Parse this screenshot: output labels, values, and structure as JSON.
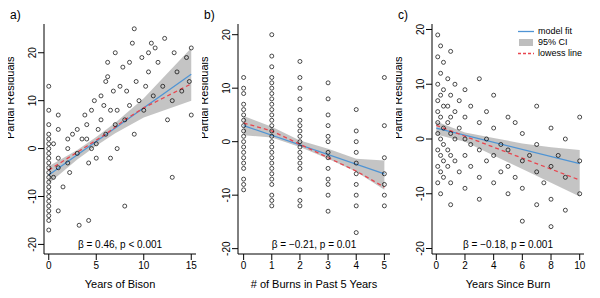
{
  "chart_data": [
    {
      "type": "scatter",
      "title": "a)",
      "xlabel": "Years of Bison",
      "ylabel": "Partial Residuals",
      "annotation": "β = 0.46, p < 0.001",
      "color": "#000000",
      "marker": "circle",
      "xlim": [
        -0.5,
        15.5
      ],
      "xticks": [
        0,
        5,
        10,
        15
      ],
      "ylim": [
        -22,
        26
      ],
      "yticks": [
        -20,
        -10,
        0,
        10,
        20
      ],
      "x": [
        0,
        0,
        0,
        0,
        0,
        0,
        0,
        0,
        0,
        0,
        0,
        0,
        0,
        0,
        0,
        0,
        0,
        0,
        0,
        0,
        0,
        0,
        0,
        0.5,
        0.5,
        1,
        1,
        1,
        1,
        1,
        1.5,
        2,
        2,
        2,
        2.2,
        2.5,
        3,
        3,
        3.2,
        3.5,
        3.8,
        4,
        4,
        4.2,
        4.5,
        4.5,
        4.8,
        4.2,
        5,
        5.2,
        5.5,
        5.5,
        5.8,
        5,
        6,
        6.2,
        6,
        6.5,
        6.8,
        6.2,
        7,
        6.5,
        7,
        7.2,
        7.5,
        7.8,
        7.2,
        8,
        8.2,
        8.5,
        8.8,
        8.5,
        8,
        9,
        9.2,
        9.5,
        9.8,
        9,
        10,
        10.2,
        10.5,
        10.8,
        10.5,
        11,
        11.5,
        11.2,
        12,
        12.5,
        12.2,
        13,
        13.5,
        13.2,
        13,
        14,
        14.5,
        15,
        15,
        14.8
      ],
      "values": [
        -17,
        -15,
        -13,
        -12,
        -10,
        -9,
        -8,
        -7,
        -6,
        -5,
        -4,
        -3,
        -2,
        -1,
        0,
        1,
        2,
        3,
        5,
        8,
        13,
        -11,
        -14,
        -6,
        1,
        -13,
        -4,
        -2,
        4,
        7,
        -8,
        -3,
        0,
        2,
        -5,
        3,
        -1,
        4,
        -16,
        2,
        7,
        2,
        5,
        -3,
        8,
        0,
        10,
        -15,
        1,
        4,
        6,
        11,
        9,
        -2,
        14,
        18,
        3,
        8,
        12,
        15,
        20,
        -2,
        5,
        8,
        13,
        17,
        0,
        6,
        12,
        18,
        22,
        9,
        -12,
        25,
        14,
        10,
        19,
        3,
        8,
        13,
        20,
        22,
        16,
        11,
        18,
        21,
        13,
        6,
        23,
        10,
        16,
        20,
        -6,
        12,
        19,
        21,
        7,
        14
      ],
      "series": [
        {
          "type": "area",
          "color": "#bebebe",
          "x": [
            0,
            3,
            5,
            7,
            10,
            15
          ],
          "lower": [
            -7.3,
            -2.3,
            0.6,
            3.2,
            6.5,
            10
          ],
          "upper": [
            -3.7,
            -0.3,
            2.4,
            5.4,
            10.5,
            21
          ]
        },
        {
          "type": "line",
          "color": "#4f94d4",
          "line_style": "solid",
          "x": [
            0,
            15
          ],
          "values": [
            -5.5,
            15.5
          ]
        },
        {
          "type": "line",
          "color": "#e8464f",
          "line_style": "dashed",
          "x": [
            0,
            2,
            4,
            6,
            8,
            10,
            12,
            15
          ],
          "values": [
            -4.5,
            -2,
            0.5,
            3,
            6,
            8.5,
            10.5,
            13.5
          ]
        }
      ]
    },
    {
      "type": "scatter",
      "title": "b)",
      "xlabel": "# of Burns in Past 5 Years",
      "ylabel": "Partial Residuals",
      "annotation": "β = −0.21, p = 0.01",
      "color": "#000000",
      "marker": "circle",
      "xlim": [
        -0.2,
        5.2
      ],
      "xticks": [
        0,
        1,
        2,
        3,
        4,
        5
      ],
      "ylim": [
        -21,
        22
      ],
      "yticks": [
        -20,
        -10,
        0,
        10,
        20
      ],
      "x": [
        0,
        0,
        0,
        0,
        0,
        0,
        0,
        0,
        0,
        0,
        0,
        0,
        0,
        0,
        0,
        0,
        0,
        0,
        0,
        1,
        1,
        1,
        1,
        1,
        1,
        1,
        1,
        1,
        1,
        1,
        1,
        1,
        1,
        1,
        1,
        1,
        1,
        1,
        1,
        1,
        1,
        1,
        1,
        1,
        1,
        1,
        2,
        2,
        2,
        2,
        2,
        2,
        2,
        2,
        2,
        2,
        2,
        2,
        2,
        2,
        2,
        2,
        2,
        2,
        2,
        3,
        3,
        3,
        3,
        3,
        3,
        3,
        3,
        3,
        3,
        3,
        3,
        3,
        4,
        4,
        4,
        4,
        4,
        4,
        4,
        4,
        4,
        4,
        5,
        5,
        5,
        5,
        5,
        5,
        5
      ],
      "values": [
        12,
        10,
        9,
        7,
        6,
        5,
        4,
        3,
        2,
        1,
        0,
        -1,
        -2,
        -3,
        -4,
        -5,
        -7,
        -8,
        -9,
        20,
        16,
        14,
        12,
        11,
        10,
        9,
        8,
        7,
        6,
        5,
        4,
        3,
        2,
        1,
        0,
        -1,
        -2,
        -3,
        -4,
        -5,
        -6,
        -7,
        -8,
        -10,
        -11,
        -12,
        15,
        12,
        10,
        8,
        6,
        4,
        3,
        2,
        1,
        0,
        -1,
        -2,
        -3,
        -4,
        -5,
        -7,
        -9,
        -11,
        -12,
        11,
        8,
        5,
        3,
        1,
        0,
        -2,
        -3,
        -5,
        -7,
        -8,
        -10,
        -13,
        6,
        2,
        0,
        -2,
        -4,
        -6,
        -8,
        -10,
        -12,
        -17,
        12,
        3,
        -3,
        -6,
        -8,
        -10,
        -12
      ],
      "series": [
        {
          "type": "area",
          "color": "#bebebe",
          "x": [
            0,
            1,
            2,
            3,
            4,
            5
          ],
          "lower": [
            1.2,
            0.8,
            -1,
            -3.2,
            -5.6,
            -9
          ],
          "upper": [
            4.8,
            2.8,
            0.2,
            -1.3,
            -3.2,
            -3.5
          ]
        },
        {
          "type": "line",
          "color": "#4f94d4",
          "line_style": "solid",
          "x": [
            0,
            5
          ],
          "values": [
            3,
            -6
          ]
        },
        {
          "type": "line",
          "color": "#e8464f",
          "line_style": "dashed",
          "x": [
            0,
            1,
            2,
            3,
            4,
            5
          ],
          "values": [
            3.5,
            2,
            -0.5,
            -3,
            -5.5,
            -8.5
          ]
        }
      ]
    },
    {
      "type": "scatter",
      "title": "c)",
      "xlabel": "Years Since Burn",
      "ylabel": "Partial Residuals",
      "annotation": "β = −0.18, p = 0.001",
      "color": "#000000",
      "marker": "circle",
      "legend": "top-right",
      "xlim": [
        -0.3,
        10.3
      ],
      "xticks": [
        0,
        2,
        4,
        6,
        8,
        10
      ],
      "ylim": [
        -21,
        21
      ],
      "yticks": [
        -20,
        -10,
        0,
        10,
        20
      ],
      "x": [
        0.1,
        0.1,
        0.1,
        0.1,
        0.1,
        0.1,
        0.1,
        0.1,
        0.1,
        0.1,
        0.3,
        0.3,
        0.3,
        0.3,
        0.3,
        0.3,
        0.3,
        0.3,
        0.5,
        0.5,
        0.5,
        0.5,
        0.5,
        0.5,
        0.5,
        0.8,
        0.8,
        0.8,
        0.8,
        0.8,
        1,
        1,
        1,
        1,
        1,
        1,
        1,
        1.3,
        1.3,
        1.3,
        1.3,
        1.6,
        1.6,
        1.6,
        2,
        2,
        2,
        2,
        2,
        2.4,
        2.4,
        2.4,
        3,
        3,
        3,
        3,
        3,
        3.5,
        3.5,
        3.5,
        4,
        4,
        4,
        4,
        4.5,
        4.5,
        5,
        5,
        5,
        5,
        5.5,
        5.5,
        6,
        6,
        6,
        6,
        6.5,
        7,
        7,
        7,
        7,
        7.5,
        8,
        8,
        8,
        8,
        8.5,
        9,
        9,
        9,
        10,
        10,
        10
      ],
      "values": [
        19,
        15,
        10,
        7,
        5,
        3,
        1,
        -2,
        -5,
        -8,
        17,
        12,
        8,
        4,
        0,
        -3,
        -6,
        -10,
        14,
        9,
        6,
        2,
        -1,
        -4,
        -7,
        11,
        6,
        3,
        -2,
        -5,
        16,
        8,
        4,
        1,
        -3,
        -8,
        -12,
        10,
        5,
        0,
        -4,
        7,
        2,
        -6,
        9,
        4,
        0,
        -3,
        -9,
        6,
        -1,
        -5,
        11,
        3,
        -2,
        -7,
        -11,
        5,
        0,
        -4,
        8,
        2,
        -3,
        -8,
        -1,
        -6,
        4,
        -2,
        -5,
        -10,
        3,
        -7,
        1,
        -4,
        -9,
        -15,
        -3,
        6,
        -1,
        -6,
        -12,
        -8,
        2,
        -5,
        -11,
        -16,
        -3,
        0,
        -7,
        -13,
        4,
        -4,
        -10
      ],
      "series": [
        {
          "name": "model fit",
          "type": "line",
          "color": "#4f94d4",
          "line_style": "solid",
          "x": [
            0,
            10
          ],
          "values": [
            2,
            -4.5
          ]
        },
        {
          "name": "95% CI",
          "type": "area",
          "color": "#bebebe",
          "x": [
            0,
            2,
            4,
            6,
            8,
            10
          ],
          "lower": [
            0.8,
            -0.5,
            -3,
            -5.5,
            -8,
            -10.5
          ],
          "upper": [
            3.2,
            1.2,
            0.2,
            -0.8,
            -1.5,
            -2
          ]
        },
        {
          "name": "lowess line",
          "type": "line",
          "color": "#e8464f",
          "line_style": "dashed",
          "x": [
            0,
            1,
            2,
            4,
            6,
            8,
            10
          ],
          "values": [
            2.5,
            1.5,
            0.5,
            -1.5,
            -3.5,
            -5.5,
            -7.5
          ]
        }
      ]
    }
  ]
}
